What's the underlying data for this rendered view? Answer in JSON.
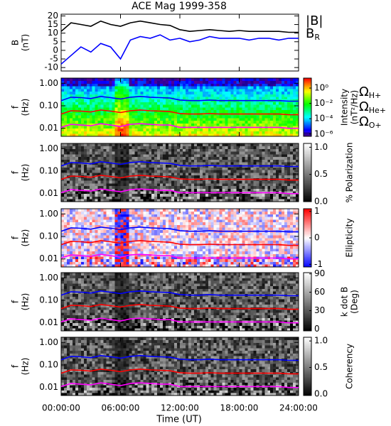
{
  "chart_data": [
    {
      "type": "line",
      "title": "ACE Mag 1999-358",
      "ylabel": [
        "B",
        "(nT)"
      ],
      "x": [
        0,
        1,
        2,
        3,
        4,
        5,
        6,
        7,
        8,
        9,
        10,
        11,
        12,
        13,
        14,
        15,
        16,
        17,
        18,
        19,
        20,
        21,
        22,
        23,
        24
      ],
      "xlim": [
        0,
        24
      ],
      "ylim": [
        -12,
        21
      ],
      "yticks": [
        -10,
        -5,
        0,
        5,
        10,
        15,
        20
      ],
      "series": [
        {
          "name": "|B|",
          "color": "#000000",
          "values": [
            11,
            16,
            15,
            14,
            17,
            15,
            14,
            16,
            17,
            16,
            15,
            14.5,
            12,
            11,
            11.5,
            12,
            11.5,
            11,
            11.5,
            11,
            11,
            11,
            11,
            10.5,
            10.5
          ]
        },
        {
          "name": "BR",
          "color": "#0000ff",
          "values": [
            -8,
            -3,
            2,
            -1,
            4,
            2,
            -5,
            6,
            8,
            7,
            9,
            6,
            7,
            5,
            6,
            8,
            7,
            7,
            7,
            6,
            7,
            7,
            6,
            7,
            7
          ]
        }
      ]
    },
    {
      "type": "spectrogram",
      "ylabel": [
        "f",
        "(Hz)"
      ],
      "xlim": [
        0,
        24
      ],
      "ylim": [
        0.0044,
        1.7
      ],
      "yscale": "log",
      "yticks": [
        {
          "value": 1,
          "label": "1.00"
        },
        {
          "value": 0.1,
          "label": "0.10"
        },
        {
          "value": 0.01,
          "label": "0.01"
        }
      ],
      "colorbar": {
        "label": [
          "Intensity",
          "(nT²/Hz)"
        ],
        "colormap": "rainbow",
        "scale": "log",
        "lim": [
          5e-07,
          20
        ],
        "ticks": [
          {
            "value": 1,
            "label": "10⁰"
          },
          {
            "value": 0.01,
            "label": "10⁻²"
          },
          {
            "value": 0.0001,
            "label": "10⁻⁴"
          },
          {
            "value": 1e-06,
            "label": "10⁻⁶"
          }
        ]
      },
      "x": [
        0,
        1,
        2,
        3,
        4,
        5,
        6,
        7,
        8,
        9,
        10,
        11,
        12,
        13,
        14,
        15,
        16,
        17,
        18,
        19,
        20,
        21,
        22,
        23,
        24
      ],
      "series": [
        {
          "name": "ΩH+",
          "color": "#0000ff",
          "values": [
            0.17,
            0.24,
            0.23,
            0.21,
            0.26,
            0.23,
            0.2,
            0.24,
            0.26,
            0.24,
            0.23,
            0.22,
            0.18,
            0.17,
            0.17,
            0.18,
            0.17,
            0.17,
            0.17,
            0.17,
            0.17,
            0.17,
            0.17,
            0.16,
            0.16
          ]
        },
        {
          "name": "ΩHe+",
          "color": "#ff0000",
          "values": [
            0.043,
            0.06,
            0.058,
            0.053,
            0.065,
            0.058,
            0.05,
            0.06,
            0.065,
            0.06,
            0.058,
            0.055,
            0.045,
            0.043,
            0.043,
            0.045,
            0.043,
            0.043,
            0.043,
            0.043,
            0.043,
            0.043,
            0.043,
            0.04,
            0.04
          ]
        },
        {
          "name": "ΩO+",
          "color": "#ff00ff",
          "values": [
            0.011,
            0.015,
            0.014,
            0.013,
            0.016,
            0.014,
            0.012,
            0.015,
            0.016,
            0.015,
            0.014,
            0.014,
            0.011,
            0.011,
            0.011,
            0.011,
            0.011,
            0.011,
            0.011,
            0.011,
            0.011,
            0.011,
            0.011,
            0.01,
            0.01
          ]
        }
      ]
    },
    {
      "type": "spectrogram",
      "ylabel": [
        "f",
        "(Hz)"
      ],
      "xlim": [
        0,
        24
      ],
      "ylim": [
        0.0044,
        1.7
      ],
      "yscale": "log",
      "yticks": [
        {
          "value": 1,
          "label": "1.00"
        },
        {
          "value": 0.1,
          "label": "0.10"
        },
        {
          "value": 0.01,
          "label": "0.01"
        }
      ],
      "colorbar": {
        "label": [
          "% Polarization"
        ],
        "colormap": "gray",
        "scale": "linear",
        "lim": [
          0,
          1.07
        ],
        "ticks": [
          {
            "value": 1,
            "label": "1.0"
          },
          {
            "value": 0.5,
            "label": "0.5"
          },
          {
            "value": 0,
            "label": "0.0"
          }
        ]
      }
    },
    {
      "type": "spectrogram",
      "ylabel": [
        "f",
        "(Hz)"
      ],
      "xlim": [
        0,
        24
      ],
      "ylim": [
        0.0044,
        1.7
      ],
      "yscale": "log",
      "yticks": [
        {
          "value": 1,
          "label": "1.00"
        },
        {
          "value": 0.1,
          "label": "0.10"
        },
        {
          "value": 0.01,
          "label": "0.01"
        }
      ],
      "colorbar": {
        "label": [
          "Ellipticity"
        ],
        "colormap": "bwr",
        "scale": "linear",
        "lim": [
          -1.1,
          1.1
        ],
        "ticks": [
          1,
          0,
          -1
        ]
      }
    },
    {
      "type": "spectrogram",
      "ylabel": [
        "f",
        "(Hz)"
      ],
      "xlim": [
        0,
        24
      ],
      "ylim": [
        0.0044,
        1.7
      ],
      "yscale": "log",
      "yticks": [
        {
          "value": 1,
          "label": "1.00"
        },
        {
          "value": 0.1,
          "label": "0.10"
        },
        {
          "value": 0.01,
          "label": "0.01"
        }
      ],
      "colorbar": {
        "label": [
          "k dot B",
          "(Deg)"
        ],
        "colormap": "gray",
        "scale": "linear",
        "lim": [
          -3,
          92
        ],
        "ticks": [
          90,
          60,
          30,
          0
        ]
      }
    },
    {
      "type": "spectrogram",
      "ylabel": [
        "f",
        "(Hz)"
      ],
      "xlim": [
        0,
        24
      ],
      "ylim": [
        0.0044,
        1.7
      ],
      "yscale": "log",
      "yticks": [
        {
          "value": 1,
          "label": "1.00"
        },
        {
          "value": 0.1,
          "label": "0.10"
        },
        {
          "value": 0.01,
          "label": "0.01"
        }
      ],
      "colorbar": {
        "label": [
          "Coherency"
        ],
        "colormap": "gray",
        "scale": "linear",
        "lim": [
          -0.03,
          1.07
        ],
        "ticks": [
          {
            "value": 1,
            "label": "1.0"
          },
          {
            "value": 0.5,
            "label": "0.5"
          },
          {
            "value": 0,
            "label": "0.0"
          }
        ]
      },
      "xlabel": "Time (UT)",
      "xticks": [
        {
          "value": 0,
          "label": "00:00:00"
        },
        {
          "value": 6,
          "label": "06:00:00"
        },
        {
          "value": 12,
          "label": "12:00:00"
        },
        {
          "value": 18,
          "label": "18:00:00"
        },
        {
          "value": 24,
          "label": "24:00:00"
        }
      ]
    }
  ]
}
